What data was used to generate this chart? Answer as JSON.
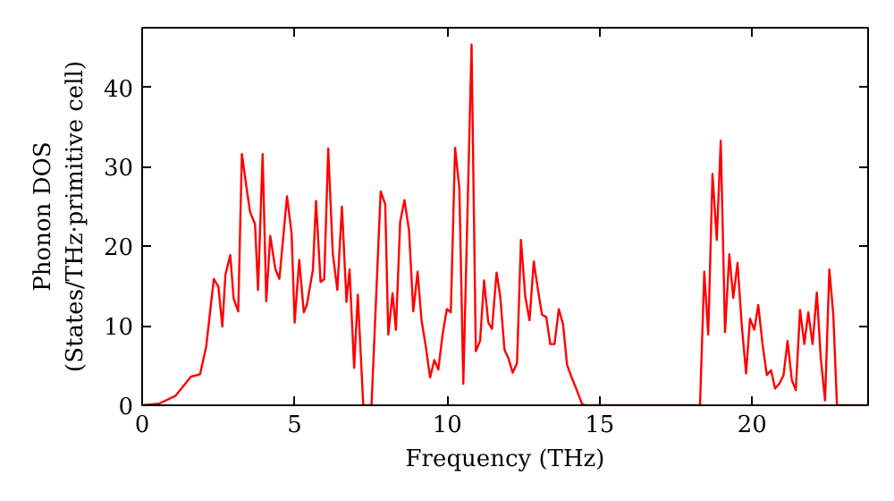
{
  "chart_data": {
    "type": "line",
    "xlabel": "Frequency (THz)",
    "ylabel": "Phonon DOS\n(States/THz·primitive cell)",
    "xlim": [
      0,
      23.8
    ],
    "ylim": [
      0,
      47.5
    ],
    "xticks": [
      0,
      5,
      10,
      15,
      20
    ],
    "yticks": [
      0,
      10,
      20,
      30,
      40
    ],
    "grid": false,
    "marker": "none",
    "line_style": "solid",
    "x": [
      0,
      0.55,
      1.1,
      1.6,
      1.9,
      2.1,
      2.35,
      2.5,
      2.63,
      2.73,
      2.89,
      3.0,
      3.15,
      3.27,
      3.44,
      3.54,
      3.7,
      3.8,
      3.95,
      4.07,
      4.2,
      4.37,
      4.5,
      4.75,
      4.9,
      5.0,
      5.15,
      5.3,
      5.4,
      5.6,
      5.7,
      5.85,
      5.97,
      6.1,
      6.25,
      6.4,
      6.55,
      6.7,
      6.8,
      6.95,
      7.07,
      7.25,
      7.52,
      7.82,
      7.97,
      8.07,
      8.21,
      8.32,
      8.46,
      8.6,
      8.75,
      8.89,
      9.03,
      9.16,
      9.3,
      9.44,
      9.58,
      9.71,
      9.85,
      9.99,
      10.12,
      10.26,
      10.4,
      10.53,
      10.8,
      10.94,
      11.08,
      11.21,
      11.35,
      11.47,
      11.62,
      11.74,
      11.88,
      12.01,
      12.15,
      12.29,
      12.42,
      12.56,
      12.7,
      12.84,
      12.97,
      13.11,
      13.25,
      13.38,
      13.52,
      13.66,
      13.8,
      13.93,
      14.07,
      14.23,
      14.42,
      14.52,
      18.29,
      18.43,
      18.56,
      18.7,
      18.84,
      18.97,
      19.11,
      19.25,
      19.38,
      19.52,
      19.66,
      19.8,
      19.93,
      20.07,
      20.2,
      20.34,
      20.48,
      20.62,
      20.75,
      20.89,
      21.03,
      21.16,
      21.3,
      21.43,
      21.57,
      21.71,
      21.84,
      21.98,
      22.12,
      22.25,
      22.39,
      22.53,
      22.66,
      22.78,
      23.8
    ],
    "series": [
      {
        "color": "#ff0000",
        "values": [
          0,
          0.2,
          1.2,
          3.6,
          3.9,
          7.4,
          15.9,
          14.9,
          9.9,
          16.4,
          18.9,
          13.4,
          11.8,
          31.6,
          26.9,
          24.3,
          22.8,
          14.5,
          31.6,
          13.1,
          21.3,
          17.1,
          15.9,
          26.3,
          21.6,
          10.4,
          18.3,
          11.7,
          12.6,
          17.1,
          25.7,
          15.5,
          15.9,
          32.3,
          19.1,
          14.5,
          25.0,
          13.0,
          17.1,
          4.7,
          13.9,
          0,
          0,
          26.9,
          25.3,
          8.9,
          14.1,
          9.5,
          23.1,
          25.8,
          22.0,
          11.8,
          16.8,
          10.7,
          7.4,
          3.5,
          5.7,
          4.5,
          8.9,
          12.1,
          11.7,
          32.4,
          27.3,
          2.7,
          45.4,
          6.8,
          8.1,
          15.7,
          10.4,
          9.6,
          16.7,
          13.7,
          7.0,
          5.9,
          4.1,
          5.3,
          20.8,
          13.7,
          10.7,
          18.1,
          14.7,
          11.4,
          11.1,
          7.7,
          7.7,
          12.1,
          10.2,
          5.1,
          3.6,
          2.1,
          0.2,
          0,
          0,
          16.8,
          8.9,
          29.1,
          20.8,
          33.3,
          9.2,
          19.0,
          13.5,
          17.9,
          10.0,
          4.0,
          10.9,
          9.5,
          12.6,
          7.7,
          3.8,
          4.4,
          2.1,
          2.7,
          3.8,
          8.1,
          3.2,
          1.9,
          12.0,
          7.7,
          11.7,
          7.7,
          14.2,
          5.9,
          0.6,
          17.1,
          11.4,
          0,
          0
        ]
      }
    ]
  }
}
